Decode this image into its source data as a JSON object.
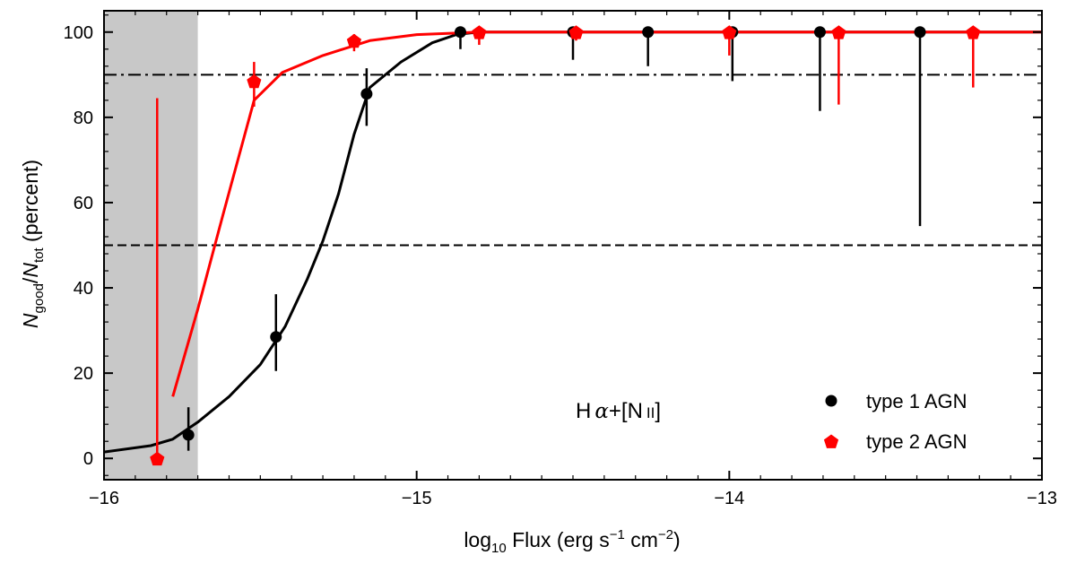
{
  "chart_data": {
    "type": "scatter",
    "xlabel_parts": {
      "pre": "log",
      "sub": "10",
      "mid": " Flux (erg s",
      "sup1": "−1",
      "mid2": " cm",
      "sup2": "−2",
      "post": ")"
    },
    "ylabel_parts": {
      "n1": "N",
      "sub1": "good",
      "slash": "/",
      "n2": "N",
      "sub2": "tot",
      "post": " (percent)"
    },
    "xlim": [
      -16,
      -13
    ],
    "ylim": [
      -5,
      105
    ],
    "x_ticks": [
      -16,
      -15,
      -14,
      -13
    ],
    "x_tick_labels": [
      "−16",
      "−15",
      "−14",
      "−13"
    ],
    "y_ticks": [
      0,
      20,
      40,
      60,
      80,
      100
    ],
    "y_tick_labels": [
      "0",
      "20",
      "40",
      "60",
      "80",
      "100"
    ],
    "shaded_region": {
      "x": [
        -16,
        -15.7
      ],
      "color": "#c8c8c8"
    },
    "hlines": [
      {
        "y": 90,
        "style": "dashdot"
      },
      {
        "y": 50,
        "style": "dashed"
      }
    ],
    "annotation": {
      "h": "H",
      "alpha": "α",
      "plus": "+[N",
      "ion": "II",
      "close": "]"
    },
    "series": [
      {
        "name": "type 1 AGN",
        "color": "#000000",
        "marker": "circle",
        "points": [
          {
            "x": -15.73,
            "y": 5.5,
            "lo": 1.8,
            "hi": 12
          },
          {
            "x": -15.45,
            "y": 28.5,
            "lo": 20.5,
            "hi": 38.5
          },
          {
            "x": -15.16,
            "y": 85.5,
            "lo": 78,
            "hi": 91.5
          },
          {
            "x": -14.86,
            "y": 100,
            "lo": 96,
            "hi": 100
          },
          {
            "x": -14.5,
            "y": 100,
            "lo": 93.5,
            "hi": 100
          },
          {
            "x": -14.26,
            "y": 100,
            "lo": 92,
            "hi": 100
          },
          {
            "x": -13.99,
            "y": 100,
            "lo": 88.5,
            "hi": 100
          },
          {
            "x": -13.71,
            "y": 100,
            "lo": 81.5,
            "hi": 100
          },
          {
            "x": -13.39,
            "y": 100,
            "lo": 54.5,
            "hi": 100
          }
        ],
        "curve": [
          [
            -16,
            1.5
          ],
          [
            -15.85,
            3
          ],
          [
            -15.78,
            4.5
          ],
          [
            -15.7,
            8.5
          ],
          [
            -15.6,
            14.5
          ],
          [
            -15.5,
            22
          ],
          [
            -15.42,
            31
          ],
          [
            -15.35,
            42
          ],
          [
            -15.3,
            51
          ],
          [
            -15.25,
            62
          ],
          [
            -15.2,
            76
          ],
          [
            -15.15,
            87
          ],
          [
            -15.05,
            93
          ],
          [
            -14.95,
            97.5
          ],
          [
            -14.87,
            99.5
          ],
          [
            -14.8,
            100
          ],
          [
            -13,
            100
          ]
        ]
      },
      {
        "name": "type 2 AGN",
        "color": "#ff0000",
        "marker": "pentagon",
        "points": [
          {
            "x": -15.83,
            "y": 0,
            "lo": 0,
            "hi": 84.5
          },
          {
            "x": -15.52,
            "y": 88.5,
            "lo": 82.5,
            "hi": 93
          },
          {
            "x": -15.2,
            "y": 98,
            "lo": 95.5,
            "hi": 99.5
          },
          {
            "x": -14.8,
            "y": 100,
            "lo": 97,
            "hi": 100
          },
          {
            "x": -14.49,
            "y": 100,
            "lo": 98,
            "hi": 100
          },
          {
            "x": -14.0,
            "y": 100,
            "lo": 94.5,
            "hi": 100
          },
          {
            "x": -13.65,
            "y": 100,
            "lo": 83,
            "hi": 100
          },
          {
            "x": -13.22,
            "y": 100,
            "lo": 87,
            "hi": 100
          }
        ],
        "curve": [
          [
            -15.78,
            14.5
          ],
          [
            -15.7,
            35
          ],
          [
            -15.62,
            57
          ],
          [
            -15.52,
            84
          ],
          [
            -15.43,
            90.5
          ],
          [
            -15.3,
            94.5
          ],
          [
            -15.15,
            98
          ],
          [
            -15.0,
            99.4
          ],
          [
            -14.8,
            100
          ],
          [
            -13,
            100
          ]
        ]
      }
    ],
    "legend_position": "bottom-right"
  }
}
